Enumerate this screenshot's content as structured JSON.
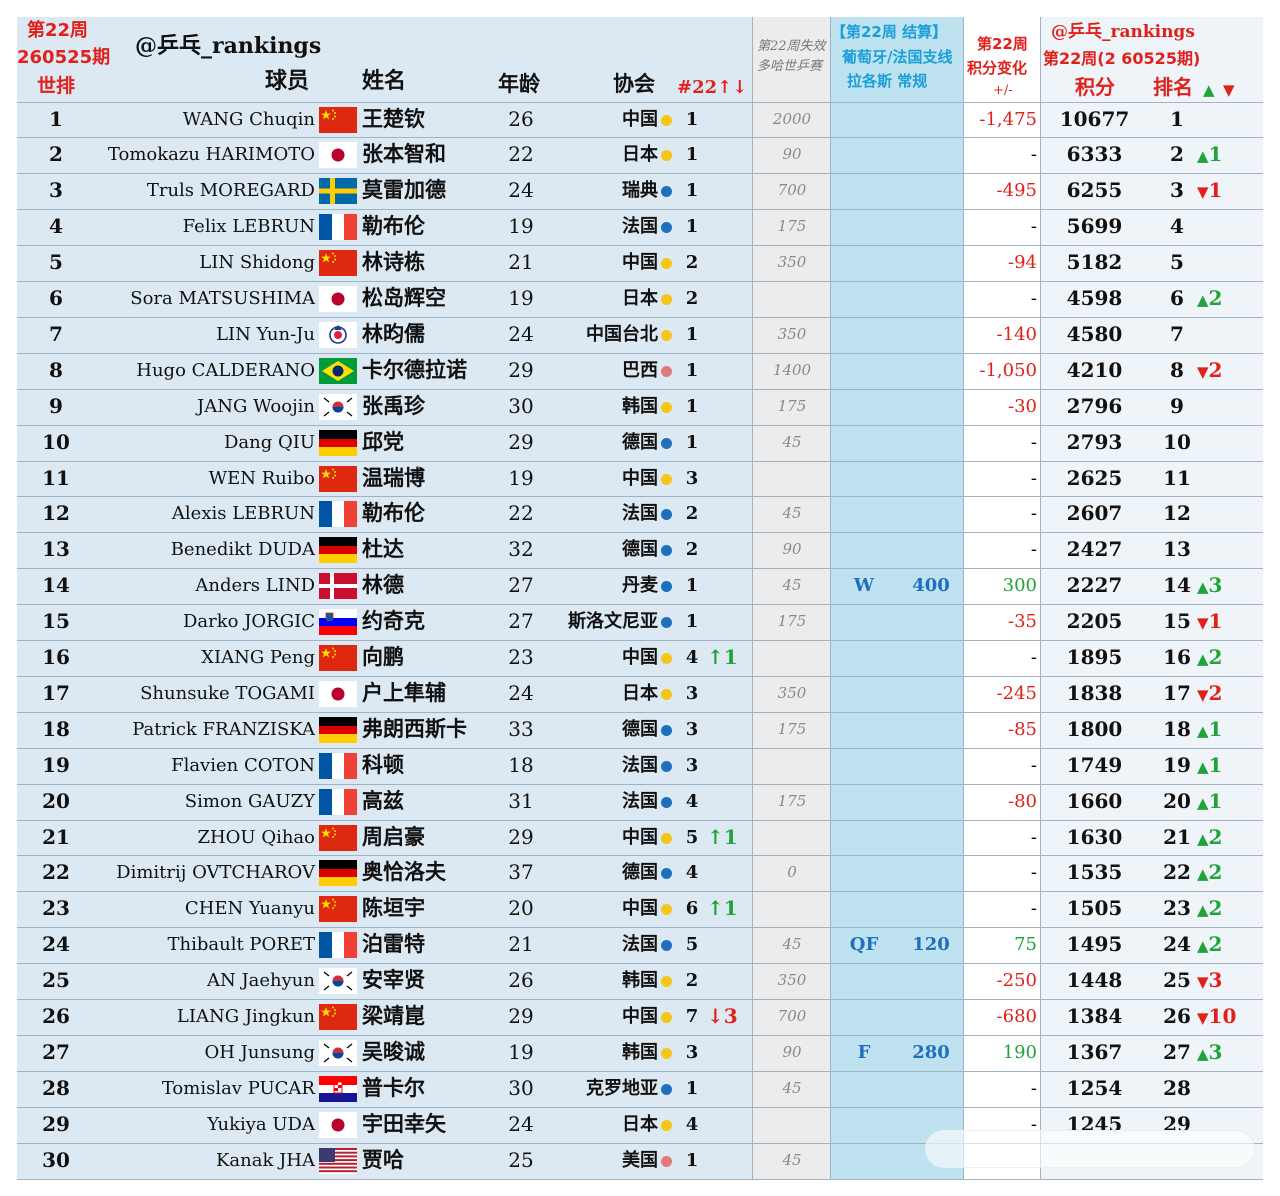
{
  "header": {
    "week_label": "第22周",
    "issue_label": "260525期",
    "world_rank_label": "世排",
    "handle": "@乒乓_rankings",
    "player_label": "球员",
    "name_label": "姓名",
    "age_label": "年龄",
    "assoc_label": "协会",
    "count_label": "#22↑↓",
    "expire_label_1": "第22周失效",
    "expire_label_2": "多哈世乒赛",
    "settle_label_1": "【第22周 结算】",
    "settle_label_2": "葡萄牙/法国支线",
    "settle_label_3": "拉各斯 常规",
    "change_label_1": "第22周",
    "change_label_2": "积分变化",
    "change_label_3": "+/-",
    "right_handle": "@乒乓_rankings",
    "right_week": "第22周(2 60525期)",
    "points_label": "积分",
    "rank_label": "排名",
    "up_symbol": "▲",
    "down_symbol": "▼"
  },
  "colors": {
    "yellow": "#f5c518",
    "blue": "#1f6fbf",
    "pink": "#e07a7a",
    "green": "#20a33a",
    "red": "#e0201b"
  },
  "rows": [
    {
      "rank": "1",
      "eng": "WANG Chuqin",
      "flag": "cn",
      "cn": "王楚钦",
      "age": "26",
      "assoc": "中国",
      "dot": "yellow",
      "count": "1",
      "count_change": "",
      "count_dir": "",
      "expire": "2000",
      "round": "",
      "round_pts": "",
      "change": "-1,475",
      "change_dir": "neg",
      "points": "10677",
      "new_rank": "1",
      "rank_change": "",
      "rank_dir": ""
    },
    {
      "rank": "2",
      "eng": "Tomokazu HARIMOTO",
      "flag": "jp",
      "cn": "张本智和",
      "age": "22",
      "assoc": "日本",
      "dot": "yellow",
      "count": "1",
      "count_change": "",
      "count_dir": "",
      "expire": "90",
      "round": "",
      "round_pts": "",
      "change": "-",
      "change_dir": "",
      "points": "6333",
      "new_rank": "2",
      "rank_change": "1",
      "rank_dir": "up"
    },
    {
      "rank": "3",
      "eng": "Truls MOREGARD",
      "flag": "se",
      "cn": "莫雷加德",
      "age": "24",
      "assoc": "瑞典",
      "dot": "blue",
      "count": "1",
      "count_change": "",
      "count_dir": "",
      "expire": "700",
      "round": "",
      "round_pts": "",
      "change": "-495",
      "change_dir": "neg",
      "points": "6255",
      "new_rank": "3",
      "rank_change": "1",
      "rank_dir": "down"
    },
    {
      "rank": "4",
      "eng": "Felix LEBRUN",
      "flag": "fr",
      "cn": "勒布伦",
      "age": "19",
      "assoc": "法国",
      "dot": "blue",
      "count": "1",
      "count_change": "",
      "count_dir": "",
      "expire": "175",
      "round": "",
      "round_pts": "",
      "change": "-",
      "change_dir": "",
      "points": "5699",
      "new_rank": "4",
      "rank_change": "",
      "rank_dir": ""
    },
    {
      "rank": "5",
      "eng": "LIN Shidong",
      "flag": "cn",
      "cn": "林诗栋",
      "age": "21",
      "assoc": "中国",
      "dot": "yellow",
      "count": "2",
      "count_change": "",
      "count_dir": "",
      "expire": "350",
      "round": "",
      "round_pts": "",
      "change": "-94",
      "change_dir": "neg",
      "points": "5182",
      "new_rank": "5",
      "rank_change": "",
      "rank_dir": ""
    },
    {
      "rank": "6",
      "eng": "Sora MATSUSHIMA",
      "flag": "jp",
      "cn": "松岛辉空",
      "age": "19",
      "assoc": "日本",
      "dot": "yellow",
      "count": "2",
      "count_change": "",
      "count_dir": "",
      "expire": "",
      "round": "",
      "round_pts": "",
      "change": "-",
      "change_dir": "",
      "points": "4598",
      "new_rank": "6",
      "rank_change": "2",
      "rank_dir": "up"
    },
    {
      "rank": "7",
      "eng": "LIN Yun-Ju",
      "flag": "tpe",
      "cn": "林昀儒",
      "age": "24",
      "assoc": "中国台北",
      "dot": "yellow",
      "count": "1",
      "count_change": "",
      "count_dir": "",
      "expire": "350",
      "round": "",
      "round_pts": "",
      "change": "-140",
      "change_dir": "neg",
      "points": "4580",
      "new_rank": "7",
      "rank_change": "",
      "rank_dir": ""
    },
    {
      "rank": "8",
      "eng": "Hugo CALDERANO",
      "flag": "br",
      "cn": "卡尔德拉诺",
      "age": "29",
      "assoc": "巴西",
      "dot": "pink",
      "count": "1",
      "count_change": "",
      "count_dir": "",
      "expire": "1400",
      "round": "",
      "round_pts": "",
      "change": "-1,050",
      "change_dir": "neg",
      "points": "4210",
      "new_rank": "8",
      "rank_change": "2",
      "rank_dir": "down"
    },
    {
      "rank": "9",
      "eng": "JANG Woojin",
      "flag": "kr",
      "cn": "张禹珍",
      "age": "30",
      "assoc": "韩国",
      "dot": "yellow",
      "count": "1",
      "count_change": "",
      "count_dir": "",
      "expire": "175",
      "round": "",
      "round_pts": "",
      "change": "-30",
      "change_dir": "neg",
      "points": "2796",
      "new_rank": "9",
      "rank_change": "",
      "rank_dir": ""
    },
    {
      "rank": "10",
      "eng": "Dang QIU",
      "flag": "de",
      "cn": "邱党",
      "age": "29",
      "assoc": "德国",
      "dot": "blue",
      "count": "1",
      "count_change": "",
      "count_dir": "",
      "expire": "45",
      "round": "",
      "round_pts": "",
      "change": "-",
      "change_dir": "",
      "points": "2793",
      "new_rank": "10",
      "rank_change": "",
      "rank_dir": ""
    },
    {
      "rank": "11",
      "eng": "WEN Ruibo",
      "flag": "cn",
      "cn": "温瑞博",
      "age": "19",
      "assoc": "中国",
      "dot": "yellow",
      "count": "3",
      "count_change": "",
      "count_dir": "",
      "expire": "",
      "round": "",
      "round_pts": "",
      "change": "-",
      "change_dir": "",
      "points": "2625",
      "new_rank": "11",
      "rank_change": "",
      "rank_dir": ""
    },
    {
      "rank": "12",
      "eng": "Alexis LEBRUN",
      "flag": "fr",
      "cn": "勒布伦",
      "age": "22",
      "assoc": "法国",
      "dot": "blue",
      "count": "2",
      "count_change": "",
      "count_dir": "",
      "expire": "45",
      "round": "",
      "round_pts": "",
      "change": "-",
      "change_dir": "",
      "points": "2607",
      "new_rank": "12",
      "rank_change": "",
      "rank_dir": ""
    },
    {
      "rank": "13",
      "eng": "Benedikt DUDA",
      "flag": "de",
      "cn": "杜达",
      "age": "32",
      "assoc": "德国",
      "dot": "blue",
      "count": "2",
      "count_change": "",
      "count_dir": "",
      "expire": "90",
      "round": "",
      "round_pts": "",
      "change": "-",
      "change_dir": "",
      "points": "2427",
      "new_rank": "13",
      "rank_change": "",
      "rank_dir": ""
    },
    {
      "rank": "14",
      "eng": "Anders LIND",
      "flag": "dk",
      "cn": "林德",
      "age": "27",
      "assoc": "丹麦",
      "dot": "blue",
      "count": "1",
      "count_change": "",
      "count_dir": "",
      "expire": "45",
      "round": "W",
      "round_pts": "400",
      "change": "300",
      "change_dir": "pos",
      "points": "2227",
      "new_rank": "14",
      "rank_change": "3",
      "rank_dir": "up"
    },
    {
      "rank": "15",
      "eng": "Darko JORGIC",
      "flag": "si",
      "cn": "约奇克",
      "age": "27",
      "assoc": "斯洛文尼亚",
      "dot": "blue",
      "count": "1",
      "count_change": "",
      "count_dir": "",
      "expire": "175",
      "round": "",
      "round_pts": "",
      "change": "-35",
      "change_dir": "neg",
      "points": "2205",
      "new_rank": "15",
      "rank_change": "1",
      "rank_dir": "down"
    },
    {
      "rank": "16",
      "eng": "XIANG Peng",
      "flag": "cn",
      "cn": "向鹏",
      "age": "23",
      "assoc": "中国",
      "dot": "yellow",
      "count": "4",
      "count_change": "↑1",
      "count_dir": "pos",
      "expire": "",
      "round": "",
      "round_pts": "",
      "change": "-",
      "change_dir": "",
      "points": "1895",
      "new_rank": "16",
      "rank_change": "2",
      "rank_dir": "up"
    },
    {
      "rank": "17",
      "eng": "Shunsuke TOGAMI",
      "flag": "jp",
      "cn": "户上隼辅",
      "age": "24",
      "assoc": "日本",
      "dot": "yellow",
      "count": "3",
      "count_change": "",
      "count_dir": "",
      "expire": "350",
      "round": "",
      "round_pts": "",
      "change": "-245",
      "change_dir": "neg",
      "points": "1838",
      "new_rank": "17",
      "rank_change": "2",
      "rank_dir": "down"
    },
    {
      "rank": "18",
      "eng": "Patrick FRANZISKA",
      "flag": "de",
      "cn": "弗朗西斯卡",
      "age": "33",
      "assoc": "德国",
      "dot": "blue",
      "count": "3",
      "count_change": "",
      "count_dir": "",
      "expire": "175",
      "round": "",
      "round_pts": "",
      "change": "-85",
      "change_dir": "neg",
      "points": "1800",
      "new_rank": "18",
      "rank_change": "1",
      "rank_dir": "up"
    },
    {
      "rank": "19",
      "eng": "Flavien COTON",
      "flag": "fr",
      "cn": "科顿",
      "age": "18",
      "assoc": "法国",
      "dot": "blue",
      "count": "3",
      "count_change": "",
      "count_dir": "",
      "expire": "",
      "round": "",
      "round_pts": "",
      "change": "-",
      "change_dir": "",
      "points": "1749",
      "new_rank": "19",
      "rank_change": "1",
      "rank_dir": "up"
    },
    {
      "rank": "20",
      "eng": "Simon GAUZY",
      "flag": "fr",
      "cn": "高兹",
      "age": "31",
      "assoc": "法国",
      "dot": "blue",
      "count": "4",
      "count_change": "",
      "count_dir": "",
      "expire": "175",
      "round": "",
      "round_pts": "",
      "change": "-80",
      "change_dir": "neg",
      "points": "1660",
      "new_rank": "20",
      "rank_change": "1",
      "rank_dir": "up"
    },
    {
      "rank": "21",
      "eng": "ZHOU Qihao",
      "flag": "cn",
      "cn": "周启豪",
      "age": "29",
      "assoc": "中国",
      "dot": "yellow",
      "count": "5",
      "count_change": "↑1",
      "count_dir": "pos",
      "expire": "",
      "round": "",
      "round_pts": "",
      "change": "-",
      "change_dir": "",
      "points": "1630",
      "new_rank": "21",
      "rank_change": "2",
      "rank_dir": "up"
    },
    {
      "rank": "22",
      "eng": "Dimitrij OVTCHAROV",
      "flag": "de",
      "cn": "奥恰洛夫",
      "age": "37",
      "assoc": "德国",
      "dot": "blue",
      "count": "4",
      "count_change": "",
      "count_dir": "",
      "expire": "0",
      "round": "",
      "round_pts": "",
      "change": "-",
      "change_dir": "",
      "points": "1535",
      "new_rank": "22",
      "rank_change": "2",
      "rank_dir": "up"
    },
    {
      "rank": "23",
      "eng": "CHEN Yuanyu",
      "flag": "cn",
      "cn": "陈垣宇",
      "age": "20",
      "assoc": "中国",
      "dot": "yellow",
      "count": "6",
      "count_change": "↑1",
      "count_dir": "pos",
      "expire": "",
      "round": "",
      "round_pts": "",
      "change": "-",
      "change_dir": "",
      "points": "1505",
      "new_rank": "23",
      "rank_change": "2",
      "rank_dir": "up"
    },
    {
      "rank": "24",
      "eng": "Thibault PORET",
      "flag": "fr",
      "cn": "泊雷特",
      "age": "21",
      "assoc": "法国",
      "dot": "blue",
      "count": "5",
      "count_change": "",
      "count_dir": "",
      "expire": "45",
      "round": "QF",
      "round_pts": "120",
      "change": "75",
      "change_dir": "pos",
      "points": "1495",
      "new_rank": "24",
      "rank_change": "2",
      "rank_dir": "up"
    },
    {
      "rank": "25",
      "eng": "AN Jaehyun",
      "flag": "kr",
      "cn": "安宰贤",
      "age": "26",
      "assoc": "韩国",
      "dot": "yellow",
      "count": "2",
      "count_change": "",
      "count_dir": "",
      "expire": "350",
      "round": "",
      "round_pts": "",
      "change": "-250",
      "change_dir": "neg",
      "points": "1448",
      "new_rank": "25",
      "rank_change": "3",
      "rank_dir": "down"
    },
    {
      "rank": "26",
      "eng": "LIANG Jingkun",
      "flag": "cn",
      "cn": "梁靖崑",
      "age": "29",
      "assoc": "中国",
      "dot": "yellow",
      "count": "7",
      "count_change": "↓3",
      "count_dir": "neg",
      "expire": "700",
      "round": "",
      "round_pts": "",
      "change": "-680",
      "change_dir": "neg",
      "points": "1384",
      "new_rank": "26",
      "rank_change": "10",
      "rank_dir": "down"
    },
    {
      "rank": "27",
      "eng": "OH Junsung",
      "flag": "kr",
      "cn": "吴晙诚",
      "age": "19",
      "assoc": "韩国",
      "dot": "yellow",
      "count": "3",
      "count_change": "",
      "count_dir": "",
      "expire": "90",
      "round": "F",
      "round_pts": "280",
      "change": "190",
      "change_dir": "pos",
      "points": "1367",
      "new_rank": "27",
      "rank_change": "3",
      "rank_dir": "up"
    },
    {
      "rank": "28",
      "eng": "Tomislav PUCAR",
      "flag": "hr",
      "cn": "普卡尔",
      "age": "30",
      "assoc": "克罗地亚",
      "dot": "blue",
      "count": "1",
      "count_change": "",
      "count_dir": "",
      "expire": "45",
      "round": "",
      "round_pts": "",
      "change": "-",
      "change_dir": "",
      "points": "1254",
      "new_rank": "28",
      "rank_change": "",
      "rank_dir": ""
    },
    {
      "rank": "29",
      "eng": "Yukiya UDA",
      "flag": "jp",
      "cn": "宇田幸矢",
      "age": "24",
      "assoc": "日本",
      "dot": "yellow",
      "count": "4",
      "count_change": "",
      "count_dir": "",
      "expire": "",
      "round": "",
      "round_pts": "",
      "change": "-",
      "change_dir": "",
      "points": "1245",
      "new_rank": "29",
      "rank_change": "",
      "rank_dir": ""
    },
    {
      "rank": "30",
      "eng": "Kanak JHA",
      "flag": "us",
      "cn": "贾哈",
      "age": "25",
      "assoc": "美国",
      "dot": "pink",
      "count": "1",
      "count_change": "",
      "count_dir": "",
      "expire": "45",
      "round": "",
      "round_pts": "",
      "change": "",
      "change_dir": "",
      "points": "",
      "new_rank": "",
      "rank_change": "",
      "rank_dir": ""
    }
  ]
}
